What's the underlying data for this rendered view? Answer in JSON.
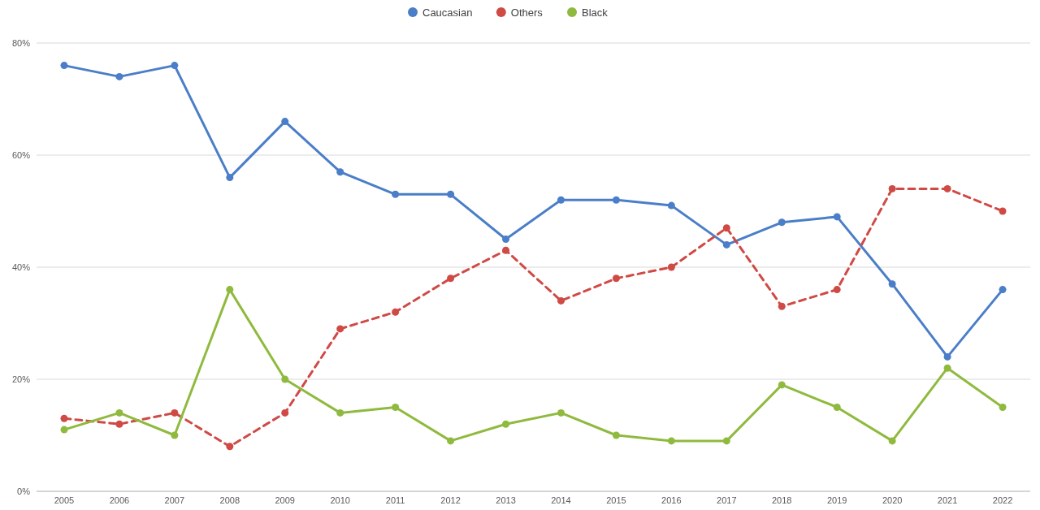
{
  "chart_data": {
    "type": "line",
    "categories": [
      "2005",
      "2006",
      "2007",
      "2008",
      "2009",
      "2010",
      "2011",
      "2012",
      "2013",
      "2014",
      "2015",
      "2016",
      "2017",
      "2018",
      "2019",
      "2020",
      "2021",
      "2022"
    ],
    "series": [
      {
        "name": "Caucasian",
        "color": "#4a7ec8",
        "line_style": "solid",
        "values": [
          76,
          74,
          76,
          56,
          66,
          57,
          53,
          53,
          45,
          52,
          52,
          51,
          44,
          48,
          49,
          37,
          24,
          36
        ]
      },
      {
        "name": "Others",
        "color": "#d04a45",
        "line_style": "dashed",
        "values": [
          13,
          12,
          14,
          8,
          14,
          29,
          32,
          38,
          43,
          34,
          38,
          40,
          47,
          33,
          36,
          54,
          54,
          50
        ]
      },
      {
        "name": "Black",
        "color": "#8fba3e",
        "line_style": "solid",
        "values": [
          11,
          14,
          10,
          36,
          20,
          14,
          15,
          9,
          12,
          14,
          10,
          9,
          9,
          19,
          15,
          9,
          22,
          15
        ]
      }
    ],
    "ylim": [
      0,
      80
    ],
    "yticks": [
      {
        "value": 0,
        "label": "0%"
      },
      {
        "value": 20,
        "label": "20%"
      },
      {
        "value": 40,
        "label": "40%"
      },
      {
        "value": 60,
        "label": "60%"
      },
      {
        "value": 80,
        "label": "80%"
      }
    ],
    "grid": "y",
    "legend": "top",
    "marker": "circle"
  }
}
